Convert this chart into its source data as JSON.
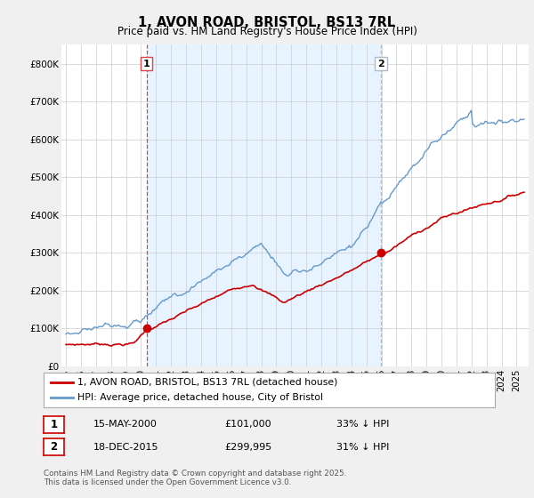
{
  "title": "1, AVON ROAD, BRISTOL, BS13 7RL",
  "subtitle": "Price paid vs. HM Land Registry's House Price Index (HPI)",
  "footer": "Contains HM Land Registry data © Crown copyright and database right 2025.\nThis data is licensed under the Open Government Licence v3.0.",
  "legend_label_red": "1, AVON ROAD, BRISTOL, BS13 7RL (detached house)",
  "legend_label_blue": "HPI: Average price, detached house, City of Bristol",
  "transaction1_date": "15-MAY-2000",
  "transaction1_price": "£101,000",
  "transaction1_hpi": "33% ↓ HPI",
  "transaction2_date": "18-DEC-2015",
  "transaction2_price": "£299,995",
  "transaction2_hpi": "31% ↓ HPI",
  "red_color": "#cc0000",
  "blue_color": "#6699cc",
  "dashed1_color": "#dd4444",
  "dashed2_color": "#aabbcc",
  "shade_color": "#ddeeff",
  "background_color": "#f0f0f0",
  "plot_bg_color": "#ffffff",
  "grid_color": "#cccccc",
  "ylim": [
    0,
    850000
  ],
  "yticks": [
    0,
    100000,
    200000,
    300000,
    400000,
    500000,
    600000,
    700000,
    800000
  ],
  "ytick_labels": [
    "£0",
    "£100K",
    "£200K",
    "£300K",
    "£400K",
    "£500K",
    "£600K",
    "£700K",
    "£800K"
  ],
  "transaction1_x": 2000.37,
  "transaction1_y": 101000,
  "transaction2_x": 2015.96,
  "transaction2_y": 299995,
  "marker_box_color": "#cc0000",
  "xlim_left": 1994.7,
  "xlim_right": 2025.8
}
